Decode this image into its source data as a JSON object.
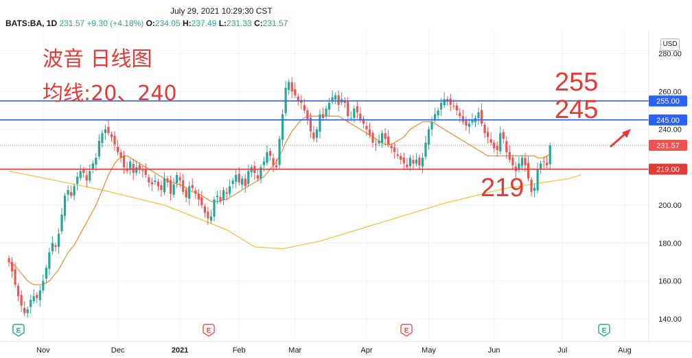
{
  "header": {
    "timestamp": "July 29, 2021 10:29:30 CST",
    "symbol": "BATS:BA, 1D",
    "last": "231.57",
    "change": "+9.30 (+4.18%)",
    "open_label": "O:",
    "open": "234.05",
    "high_label": "H:",
    "high": "237.49",
    "low_label": "L:",
    "low": "231.33",
    "close_label": "C:",
    "close": "231.57"
  },
  "currency": "USD",
  "annotations": {
    "title": "波音 日线图",
    "ma_note": "均线:20、240",
    "level_255": "255",
    "level_245": "245",
    "level_219": "219"
  },
  "chart_data": {
    "type": "candlestick",
    "ylim": [
      128,
      292
    ],
    "yticks": [
      140,
      160,
      180,
      200,
      220,
      240,
      260,
      280
    ],
    "ytick_labels": [
      "140.00",
      "160.00",
      "180.00",
      "200.00",
      "220.00",
      "240.00",
      "260.00",
      "280.00"
    ],
    "x_ticks": [
      {
        "i": 11,
        "label": "Nov"
      },
      {
        "i": 35,
        "label": "Dec"
      },
      {
        "i": 55,
        "label": "2021"
      },
      {
        "i": 74,
        "label": "Feb"
      },
      {
        "i": 92,
        "label": "Mar"
      },
      {
        "i": 115,
        "label": "Apr"
      },
      {
        "i": 135,
        "label": "May"
      },
      {
        "i": 156,
        "label": "Jun"
      },
      {
        "i": 178,
        "label": "Jul"
      },
      {
        "i": 198,
        "label": "Aug"
      }
    ],
    "horizontal_levels": [
      {
        "value": 255,
        "label": "255.00",
        "color": "#2962ff"
      },
      {
        "value": 245,
        "label": "245.00",
        "color": "#2962ff"
      },
      {
        "value": 219,
        "label": "219.00",
        "color": "#e53935"
      }
    ],
    "last_price": {
      "value": 231.57,
      "label": "231.57",
      "color": "#ef5350"
    },
    "closes": [
      170,
      165,
      158,
      152,
      147,
      143,
      145,
      150,
      152,
      151,
      155,
      160,
      167,
      175,
      180,
      178,
      185,
      195,
      205,
      208,
      205,
      210,
      215,
      218,
      217,
      213,
      218,
      222,
      225,
      234,
      238,
      240,
      238,
      236,
      232,
      228,
      225,
      220,
      218,
      223,
      217,
      220,
      219,
      218,
      216,
      212,
      211,
      213,
      210,
      208,
      214,
      212,
      206,
      211,
      216,
      213,
      207,
      204,
      210,
      209,
      206,
      203,
      200,
      196,
      193,
      194,
      203,
      205,
      202,
      208,
      206,
      210,
      213,
      216,
      212,
      214,
      210,
      218,
      220,
      217,
      214,
      220,
      223,
      228,
      226,
      221,
      220,
      235,
      248,
      262,
      265,
      260,
      258,
      255,
      254,
      250,
      245,
      239,
      235,
      240,
      248,
      246,
      251,
      254,
      257,
      258,
      253,
      256,
      254,
      247,
      246,
      251,
      249,
      245,
      243,
      240,
      237,
      233,
      232,
      234,
      238,
      235,
      232,
      230,
      228,
      226,
      224,
      222,
      220,
      225,
      222,
      224,
      221,
      225,
      233,
      240,
      244,
      248,
      250,
      254,
      256,
      255,
      253,
      252,
      250,
      247,
      244,
      242,
      243,
      245,
      246,
      249,
      243,
      238,
      236,
      233,
      230,
      229,
      238,
      235,
      228,
      224,
      221,
      218,
      222,
      225,
      221,
      214,
      207,
      209,
      219,
      222,
      223,
      221,
      231.57
    ],
    "ma20": [
      170,
      169,
      168,
      166,
      164,
      162,
      160,
      159,
      158,
      158,
      158,
      158,
      159,
      160,
      162,
      164,
      166,
      169,
      172,
      175,
      177,
      179,
      182,
      185,
      188,
      191,
      194,
      197,
      200,
      204,
      208,
      212,
      216,
      219,
      222,
      224,
      225,
      226,
      226,
      225,
      224,
      223,
      222,
      221,
      220,
      219,
      218,
      217,
      216,
      215,
      214,
      213,
      212,
      212,
      211,
      211,
      210,
      209,
      208,
      207,
      207,
      206,
      205,
      204,
      203,
      202,
      202,
      202,
      202,
      203,
      203,
      204,
      205,
      206,
      207,
      208,
      209,
      210,
      211,
      212,
      213,
      214,
      215,
      217,
      219,
      221,
      223,
      226,
      229,
      233,
      236,
      239,
      241,
      243,
      245,
      246,
      247,
      247,
      247,
      247,
      247,
      247,
      247,
      247,
      247,
      247,
      247,
      246,
      245,
      244,
      243,
      242,
      241,
      240,
      239,
      238,
      237,
      236,
      235,
      234,
      233,
      232,
      232,
      232,
      233,
      234,
      235,
      236,
      238,
      240,
      241,
      242,
      243,
      244,
      244,
      244,
      244,
      243,
      242,
      241,
      240,
      239,
      238,
      237,
      236,
      235,
      234,
      233,
      232,
      231,
      230,
      229,
      228,
      227,
      226,
      226,
      226,
      226,
      226,
      226,
      226,
      226,
      226,
      226,
      226,
      226,
      226,
      226,
      226,
      226,
      225,
      225,
      225,
      226,
      227
    ],
    "ma240_x": [
      0,
      30,
      50,
      70,
      79,
      88,
      100,
      120,
      140,
      160,
      180,
      184
    ],
    "ma240": [
      218,
      208,
      200,
      187,
      178,
      177,
      181,
      191,
      201,
      209,
      214,
      216
    ]
  }
}
